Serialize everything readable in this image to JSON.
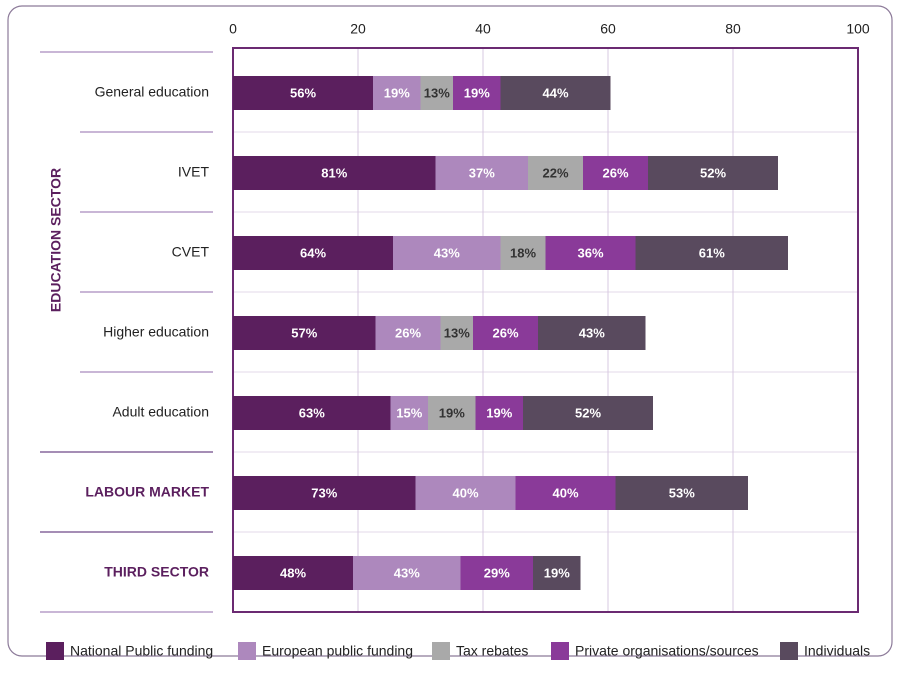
{
  "chart_data": {
    "type": "stacked-bar-horizontal",
    "group_label": "EDUCATION SECTOR",
    "categories": [
      "General education",
      "IVET",
      "CVET",
      "Higher education",
      "Adult education",
      "LABOUR MARKET",
      "THIRD SECTOR"
    ],
    "xlim": [
      0,
      250
    ],
    "xticks": [
      {
        "value": 0,
        "label": "0"
      },
      {
        "value": 50,
        "label": "20"
      },
      {
        "value": 100,
        "label": "40"
      },
      {
        "value": 150,
        "label": "60"
      },
      {
        "value": 200,
        "label": "80"
      },
      {
        "value": 250,
        "label": "100"
      }
    ],
    "grid": true,
    "legend": "bottom",
    "series": [
      {
        "name": "National Public funding",
        "color": "#5b1f5e",
        "values": [
          56,
          81,
          64,
          57,
          63,
          73,
          48
        ],
        "value_labels": [
          "56%",
          "81%",
          "64%",
          "57%",
          "63%",
          "73%",
          "48%"
        ]
      },
      {
        "name": "European public funding",
        "color": "#ad88bd",
        "values": [
          19,
          37,
          43,
          26,
          15,
          40,
          43
        ],
        "value_labels": [
          "19%",
          "37%",
          "43%",
          "26%",
          "15%",
          "40%",
          "43%"
        ]
      },
      {
        "name": "Tax rebates",
        "color": "#a9a9a9",
        "values": [
          13,
          22,
          18,
          13,
          19,
          null,
          null
        ],
        "value_labels": [
          "13%",
          "22%",
          "18%",
          "13%",
          "19%",
          null,
          null
        ]
      },
      {
        "name": "Private organisations/sources",
        "color": "#8a3a99",
        "values": [
          19,
          26,
          36,
          26,
          19,
          40,
          29
        ],
        "value_labels": [
          "19%",
          "26%",
          "36%",
          "26%",
          "19%",
          "40%",
          "29%"
        ]
      },
      {
        "name": "Individuals",
        "color": "#594a5e",
        "values": [
          44,
          52,
          61,
          43,
          52,
          53,
          19
        ],
        "value_labels": [
          "44%",
          "52%",
          "61%",
          "43%",
          "52%",
          "53%",
          "19%"
        ]
      }
    ]
  }
}
